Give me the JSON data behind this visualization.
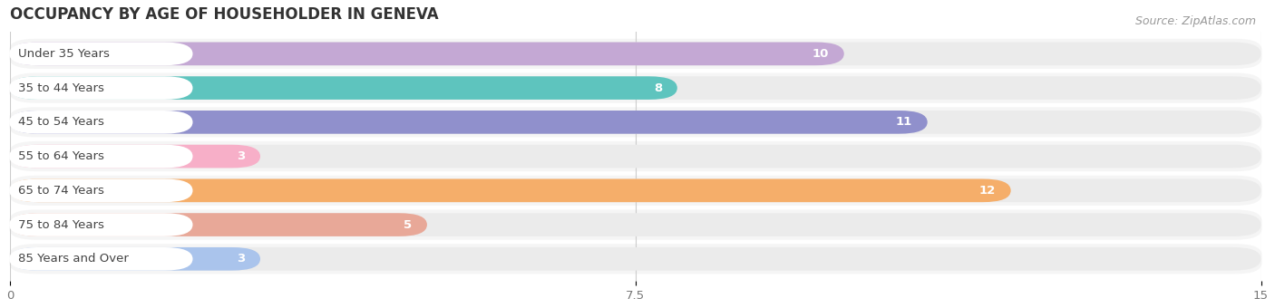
{
  "title": "OCCUPANCY BY AGE OF HOUSEHOLDER IN GENEVA",
  "source": "Source: ZipAtlas.com",
  "categories": [
    "Under 35 Years",
    "35 to 44 Years",
    "45 to 54 Years",
    "55 to 64 Years",
    "65 to 74 Years",
    "75 to 84 Years",
    "85 Years and Over"
  ],
  "values": [
    10,
    8,
    11,
    3,
    12,
    5,
    3
  ],
  "bar_colors": [
    "#c4a8d4",
    "#5ec4be",
    "#9090cc",
    "#f7afc8",
    "#f5ae6a",
    "#e8a898",
    "#aac4ec"
  ],
  "bar_bg_color": "#ebebeb",
  "label_bg_color": "#ffffff",
  "row_bg_color": "#f5f5f5",
  "xlim": [
    0,
    15
  ],
  "xticks": [
    0,
    7.5,
    15
  ],
  "title_fontsize": 12,
  "source_fontsize": 9,
  "label_fontsize": 9.5,
  "value_fontsize": 9.5,
  "background_color": "#ffffff",
  "plot_bg_color": "#ffffff"
}
